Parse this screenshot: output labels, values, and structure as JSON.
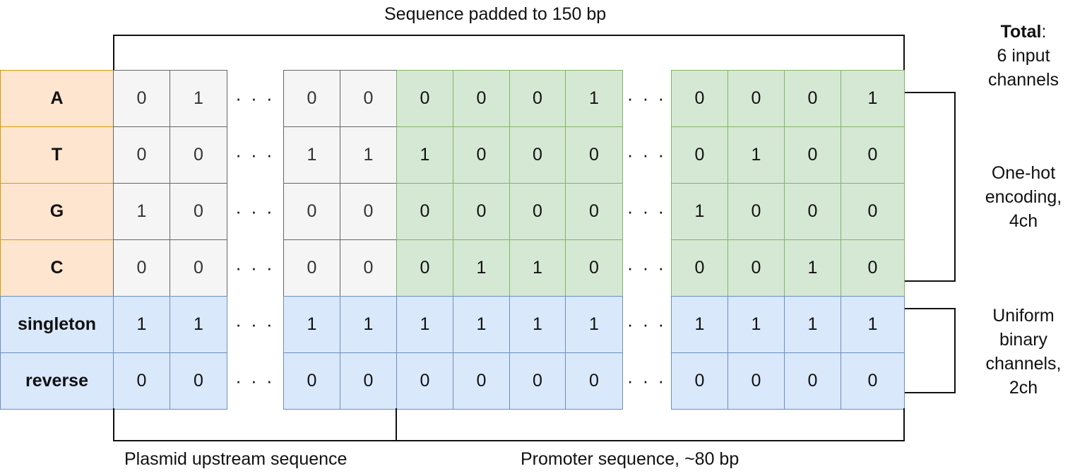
{
  "title": "Sequence padded to 150 bp",
  "row_labels": [
    "A",
    "T",
    "G",
    "C",
    "singleton",
    "reverse"
  ],
  "ellipsis": "· · ·",
  "grid": {
    "plasmid_left": [
      [
        "0",
        "1"
      ],
      [
        "0",
        "0"
      ],
      [
        "1",
        "0"
      ],
      [
        "0",
        "0"
      ],
      [
        "1",
        "1"
      ],
      [
        "0",
        "0"
      ]
    ],
    "plasmid_right": [
      [
        "0",
        "0"
      ],
      [
        "1",
        "1"
      ],
      [
        "0",
        "0"
      ],
      [
        "0",
        "0"
      ],
      [
        "1",
        "1"
      ],
      [
        "0",
        "0"
      ]
    ],
    "promoter_left": [
      [
        "0",
        "0",
        "0",
        "1"
      ],
      [
        "1",
        "0",
        "0",
        "0"
      ],
      [
        "0",
        "0",
        "0",
        "0"
      ],
      [
        "0",
        "1",
        "1",
        "0"
      ],
      [
        "1",
        "1",
        "1",
        "1"
      ],
      [
        "0",
        "0",
        "0",
        "0"
      ]
    ],
    "promoter_right": [
      [
        "0",
        "0",
        "0",
        "1"
      ],
      [
        "0",
        "1",
        "0",
        "0"
      ],
      [
        "1",
        "0",
        "0",
        "0"
      ],
      [
        "0",
        "0",
        "1",
        "0"
      ],
      [
        "1",
        "1",
        "1",
        "1"
      ],
      [
        "0",
        "0",
        "0",
        "0"
      ]
    ]
  },
  "bottom": {
    "plasmid_label": "Plasmid upstream sequence",
    "promoter_label": "Promoter sequence, ~80 bp"
  },
  "side": {
    "total_bold": "Total",
    "total_colon": ":",
    "total_lines": [
      "6 input",
      "channels"
    ],
    "onehot_lines": [
      "One-hot",
      "encoding,",
      "4ch"
    ],
    "uniform_lines": [
      "Uniform",
      "binary",
      "channels,",
      "2ch"
    ]
  },
  "colors": {
    "label_dna_fill": "#fde5cf",
    "label_dna_border": "#d79b00",
    "label_bin_fill": "#dae8fc",
    "label_bin_border": "#6c8ebf",
    "plasmid_fill": "#f5f5f5",
    "plasmid_border": "#666666",
    "promoter_fill": "#d5e8d4",
    "promoter_border": "#82b366",
    "binary_fill": "#dae8fc",
    "binary_border": "#6c8ebf"
  }
}
